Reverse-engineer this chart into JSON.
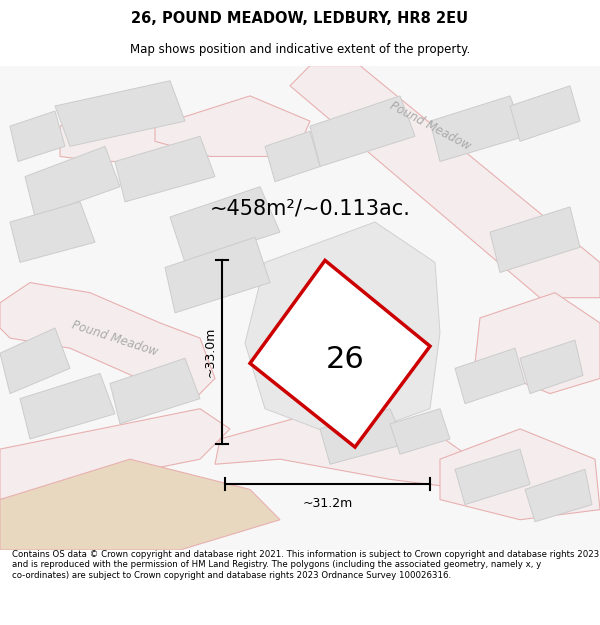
{
  "title": "26, POUND MEADOW, LEDBURY, HR8 2EU",
  "subtitle": "Map shows position and indicative extent of the property.",
  "area_text": "~458m²/~0.113ac.",
  "label_number": "26",
  "dim_width": "~31.2m",
  "dim_height": "~33.0m",
  "footer": "Contains OS data © Crown copyright and database right 2021. This information is subject to Crown copyright and database rights 2023 and is reproduced with the permission of HM Land Registry. The polygons (including the associated geometry, namely x, y co-ordinates) are subject to Crown copyright and database rights 2023 Ordnance Survey 100026316.",
  "bg_color": "#f7f7f7",
  "road_color": "#e8b0b0",
  "road_fill": "#f5eded",
  "plot_color": "#cc0000",
  "plot_fill": "#ffffff",
  "building_fill": "#e0e0e0",
  "building_stroke": "#cccccc",
  "street_label": "Pound Meadow",
  "street_label2": "Pound Meadow",
  "tan_fill": "#e8d8c0"
}
